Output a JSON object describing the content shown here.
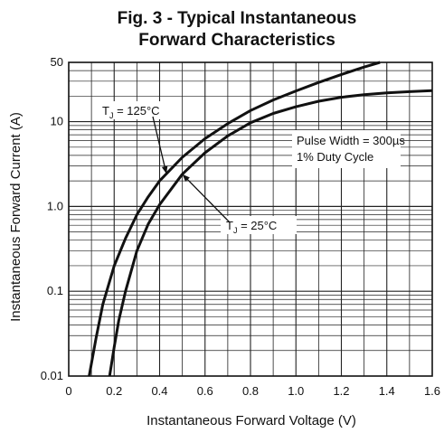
{
  "chart_data": {
    "type": "line",
    "title_line1": "Fig. 3 - Typical Instantaneous",
    "title_line2": "Forward Characteristics",
    "xlabel": "Instantaneous Forward Voltage (V)",
    "ylabel": "Instantaneous Forward Current (A)",
    "xlim": [
      0,
      1.6
    ],
    "ylim": [
      0.01,
      50
    ],
    "y_scale": "log",
    "grid": true,
    "x_ticks": [
      0,
      0.2,
      0.4,
      0.6,
      0.8,
      1.0,
      1.2,
      1.4,
      1.6
    ],
    "x_tick_labels": [
      "0",
      "0.2",
      "0.4",
      "0.6",
      "0.8",
      "1.0",
      "1.2",
      "1.4",
      "1.6"
    ],
    "y_tick_values": [
      0.01,
      0.1,
      1.0,
      10,
      50
    ],
    "y_tick_labels": [
      "0.01",
      "0.1",
      "1.0",
      "10",
      "50"
    ],
    "series": [
      {
        "label_main": "T",
        "label_sub": "J",
        "label_rest": " = 125°C",
        "x": [
          0.09,
          0.12,
          0.15,
          0.2,
          0.25,
          0.3,
          0.35,
          0.4,
          0.5,
          0.6,
          0.7,
          0.8,
          0.9,
          1.0,
          1.1,
          1.2,
          1.3,
          1.37
        ],
        "y": [
          0.01,
          0.028,
          0.07,
          0.2,
          0.42,
          0.8,
          1.3,
          2.0,
          3.8,
          6.3,
          9.5,
          13.5,
          18,
          23,
          29,
          36,
          44,
          50
        ]
      },
      {
        "label_main": "T",
        "label_sub": "J",
        "label_rest": " = 25°C",
        "x": [
          0.18,
          0.2,
          0.22,
          0.25,
          0.3,
          0.35,
          0.4,
          0.5,
          0.6,
          0.7,
          0.8,
          0.9,
          1.0,
          1.1,
          1.2,
          1.3,
          1.4,
          1.5,
          1.6
        ],
        "y": [
          0.01,
          0.022,
          0.045,
          0.1,
          0.3,
          0.62,
          1.05,
          2.4,
          4.3,
          6.8,
          9.7,
          12.5,
          15,
          17.4,
          19.4,
          20.8,
          21.8,
          22.6,
          23.2
        ]
      }
    ],
    "annotation_line1": "Pulse Width = 300µs",
    "annotation_line2": "1% Duty Cycle"
  }
}
